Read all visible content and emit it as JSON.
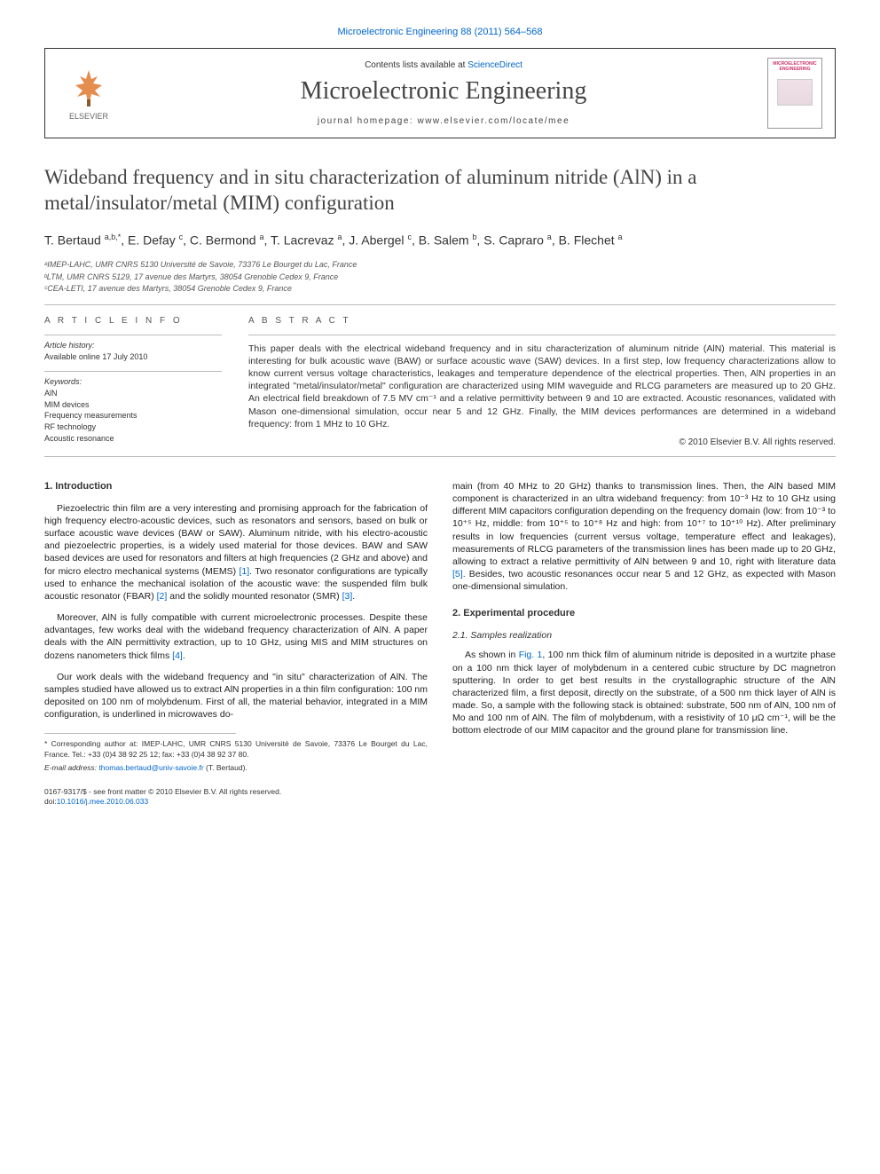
{
  "citation": "Microelectronic Engineering 88 (2011) 564–568",
  "header": {
    "publisher_name": "ELSEVIER",
    "contents_prefix": "Contents lists available at ",
    "contents_link": "ScienceDirect",
    "journal_name": "Microelectronic Engineering",
    "homepage_label": "journal homepage: www.elsevier.com/locate/mee",
    "cover_title": "MICROELECTRONIC ENGINEERING"
  },
  "article": {
    "title": "Wideband frequency and in situ characterization of aluminum nitride (AlN) in a metal/insulator/metal (MIM) configuration",
    "authors_html": "T. Bertaud <sup>a,b,*</sup>, E. Defay <sup>c</sup>, C. Bermond <sup>a</sup>, T. Lacrevaz <sup>a</sup>, J. Abergel <sup>c</sup>, B. Salem <sup>b</sup>, S. Capraro <sup>a</sup>, B. Flechet <sup>a</sup>",
    "affiliations": [
      "ᵃIMEP-LAHC, UMR CNRS 5130 Université de Savoie, 73376 Le Bourget du Lac, France",
      "ᵇLTM, UMR CNRS 5129, 17 avenue des Martyrs, 38054 Grenoble Cedex 9, France",
      "ᶜCEA-LETI, 17 avenue des Martyrs, 38054 Grenoble Cedex 9, France"
    ]
  },
  "info": {
    "heading": "A R T I C L E   I N F O",
    "history_label": "Article history:",
    "history_text": "Available online 17 July 2010",
    "keywords_label": "Keywords:",
    "keywords": [
      "AlN",
      "MIM devices",
      "Frequency measurements",
      "RF technology",
      "Acoustic resonance"
    ]
  },
  "abstract": {
    "heading": "A B S T R A C T",
    "text": "This paper deals with the electrical wideband frequency and in situ characterization of aluminum nitride (AlN) material. This material is interesting for bulk acoustic wave (BAW) or surface acoustic wave (SAW) devices. In a first step, low frequency characterizations allow to know current versus voltage characteristics, leakages and temperature dependence of the electrical properties. Then, AlN properties in an integrated \"metal/insulator/metal\" configuration are characterized using MIM waveguide and RLCG parameters are measured up to 20 GHz. An electrical field breakdown of 7.5 MV cm⁻¹ and a relative permittivity between 9 and 10 are extracted. Acoustic resonances, validated with Mason one-dimensional simulation, occur near 5 and 12 GHz. Finally, the MIM devices performances are determined in a wideband frequency: from 1 MHz to 10 GHz.",
    "copyright": "© 2010 Elsevier B.V. All rights reserved."
  },
  "body": {
    "col1": {
      "heading": "1. Introduction",
      "p1": "Piezoelectric thin film are a very interesting and promising approach for the fabrication of high frequency electro-acoustic devices, such as resonators and sensors, based on bulk or surface acoustic wave devices (BAW or SAW). Aluminum nitride, with his electro-acoustic and piezoelectric properties, is a widely used material for those devices. BAW and SAW based devices are used for resonators and filters at high frequencies (2 GHz and above) and for micro electro mechanical systems (MEMS) [1]. Two resonator configurations are typically used to enhance the mechanical isolation of the acoustic wave: the suspended film bulk acoustic resonator (FBAR) [2] and the solidly mounted resonator (SMR) [3].",
      "p2": "Moreover, AlN is fully compatible with current microelectronic processes. Despite these advantages, few works deal with the wideband frequency characterization of AlN. A paper deals with the AlN permittivity extraction, up to 10 GHz, using MIS and MIM structures on dozens nanometers thick films [4].",
      "p3": "Our work deals with the wideband frequency and \"in situ\" characterization of AlN. The samples studied have allowed us to extract AlN properties in a thin film configuration: 100 nm deposited on 100 nm of molybdenum. First of all, the material behavior, integrated in a MIM configuration, is underlined in microwaves do-"
    },
    "col2": {
      "p1": "main (from 40 MHz to 20 GHz) thanks to transmission lines. Then, the AlN based MIM component is characterized in an ultra wideband frequency: from 10⁻³ Hz to 10 GHz using different MIM capacitors configuration depending on the frequency domain (low: from 10⁻³ to 10⁺⁵ Hz, middle: from 10⁺⁵ to 10⁺⁸ Hz and high: from 10⁺⁷ to 10⁺¹⁰ Hz). After preliminary results in low frequencies (current versus voltage, temperature effect and leakages), measurements of RLCG parameters of the transmission lines has been made up to 20 GHz, allowing to extract a relative permittivity of AlN between 9 and 10, right with literature data [5]. Besides, two acoustic resonances occur near 5 and 12 GHz, as expected with Mason one-dimensional simulation.",
      "heading2": "2. Experimental procedure",
      "subheading21": "2.1. Samples realization",
      "p2": "As shown in Fig. 1, 100 nm thick film of aluminum nitride is deposited in a wurtzite phase on a 100 nm thick layer of molybdenum in a centered cubic structure by DC magnetron sputtering. In order to get best results in the crystallographic structure of the AlN characterized film, a first deposit, directly on the substrate, of a 500 nm thick layer of AlN is made. So, a sample with the following stack is obtained: substrate, 500 nm of AlN, 100 nm of Mo and 100 nm of AlN. The film of molybdenum, with a resistivity of 10 μΩ cm⁻¹, will be the bottom electrode of our MIM capacitor and the ground plane for transmission line."
    }
  },
  "footnotes": {
    "corr": "* Corresponding author at: IMEP-LAHC, UMR CNRS 5130 Université de Savoie, 73376 Le Bourget du Lac, France. Tel.: +33 (0)4 38 92 25 12; fax: +33 (0)4 38 92 37 80.",
    "email_label": "E-mail address: ",
    "email": "thomas.bertaud@univ-savoie.fr",
    "email_suffix": " (T. Bertaud)."
  },
  "footer": {
    "left1": "0167-9317/$ - see front matter © 2010 Elsevier B.V. All rights reserved.",
    "doi_label": "doi:",
    "doi": "10.1016/j.mee.2010.06.033"
  },
  "colors": {
    "link": "#0066cc",
    "text": "#222222",
    "heading": "#444444",
    "border": "#333333"
  }
}
